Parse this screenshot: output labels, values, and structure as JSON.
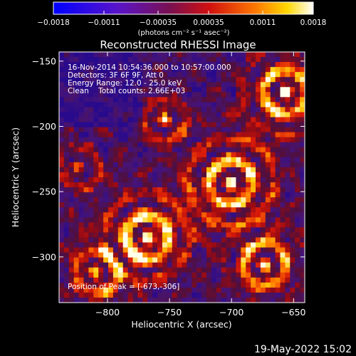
{
  "chart_data": {
    "type": "heatmap",
    "title": "Reconstructed RHESSI Image",
    "xlabel": "Heliocentric X (arcsec)",
    "ylabel": "Heliocentric Y (arcsec)",
    "xlim": [
      -839,
      -641
    ],
    "ylim": [
      -335,
      -143
    ],
    "x_ticks": [
      -800,
      -750,
      -700,
      -650
    ],
    "x_tick_labels": [
      "−800",
      "−750",
      "−700",
      "−650"
    ],
    "y_ticks": [
      -150,
      -200,
      -250,
      -300
    ],
    "y_tick_labels": [
      "−150",
      "−200",
      "−250",
      "−300"
    ],
    "colorbar": {
      "colormap": "hot (blue → purple → red → orange → yellow → white)",
      "range": [
        -0.0018,
        0.0018
      ],
      "ticks": [
        -0.0018,
        -0.0011,
        -0.00035,
        0.00035,
        0.0011,
        0.0018
      ],
      "tick_labels": [
        "−0.0018",
        "−0.0011",
        "−0.00035",
        "0.00035",
        "0.0011",
        "0.0018"
      ],
      "unit_label": "(photons cm⁻² s⁻¹ asec⁻²)"
    },
    "annotations": [
      "16-Nov-2014 10:54:36.000 to 10:57:00.000",
      "Detectors: 3F 6F 9F, Att 0",
      "Energy Range: 12.0 - 25.0 keV",
      "Clean    Total counts: 2.66E+03"
    ],
    "peak_label": "Position of Peak = [-673,-306]",
    "peak_position": [
      -673,
      -306
    ]
  },
  "footer": {
    "timestamp": "19-May-2022 15:02"
  }
}
